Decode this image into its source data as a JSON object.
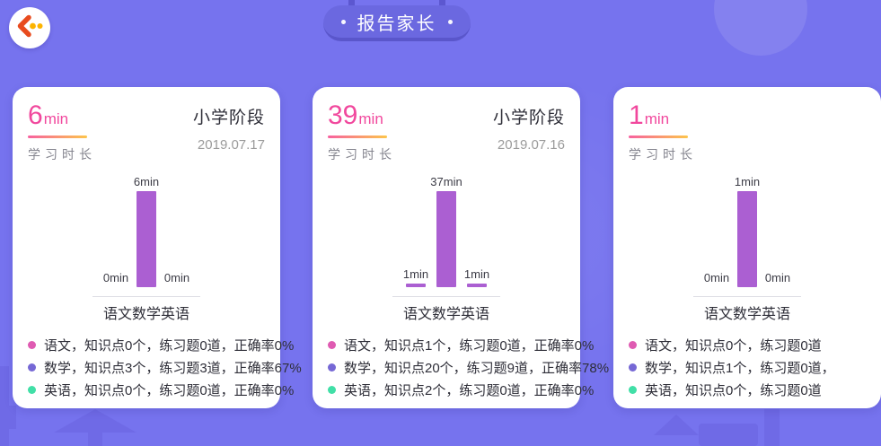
{
  "theme": {
    "background": "#7673ee",
    "card_background": "#ffffff",
    "accent_pink": "#f1489d",
    "underline_gradient": [
      "#f7619f",
      "#fcc54b"
    ],
    "bar_color": "#ab5fd2",
    "pill_color": "#6b68e0",
    "pill_shadow_color": "#5a56cb"
  },
  "header": {
    "title": "报告家长",
    "back_icon": "chevron-left-with-dots",
    "back_chevron_color": "#e84b1e",
    "back_dots_color": "#fcb400"
  },
  "cards": [
    {
      "duration_value": "6",
      "duration_unit": "min",
      "duration_label": "学习时长",
      "stage": "小学阶段",
      "date": "2019.07.17",
      "chart_data": {
        "type": "bar",
        "categories": [
          "语文",
          "数学",
          "英语"
        ],
        "values": [
          0,
          6,
          0
        ],
        "unit": "min",
        "value_labels": [
          "0min",
          "6min",
          "0min"
        ],
        "ylim": [
          0,
          6
        ],
        "bar_color": "#ab5fd2"
      },
      "legend": [
        {
          "color": "#df5bb2",
          "text": "语文，知识点0个，练习题0道，正确率0%"
        },
        {
          "color": "#7668d5",
          "text": "数学，知识点3个，练习题3道，正确率67%"
        },
        {
          "color": "#41dfa7",
          "text": "英语，知识点0个，练习题0道，正确率0%"
        }
      ]
    },
    {
      "duration_value": "39",
      "duration_unit": "min",
      "duration_label": "学习时长",
      "stage": "小学阶段",
      "date": "2019.07.16",
      "chart_data": {
        "type": "bar",
        "categories": [
          "语文",
          "数学",
          "英语"
        ],
        "values": [
          1,
          37,
          1
        ],
        "unit": "min",
        "value_labels": [
          "1min",
          "37min",
          "1min"
        ],
        "ylim": [
          0,
          37
        ],
        "bar_color": "#ab5fd2"
      },
      "legend": [
        {
          "color": "#df5bb2",
          "text": "语文，知识点1个，练习题0道，正确率0%"
        },
        {
          "color": "#7668d5",
          "text": "数学，知识点20个，练习题9道，正确率78%"
        },
        {
          "color": "#41dfa7",
          "text": "英语，知识点2个，练习题0道，正确率0%"
        }
      ]
    },
    {
      "duration_value": "1",
      "duration_unit": "min",
      "duration_label": "学习时长",
      "chart_data": {
        "type": "bar",
        "categories": [
          "语文",
          "数学",
          "英语"
        ],
        "values": [
          0,
          1,
          0
        ],
        "unit": "min",
        "value_labels": [
          "0min",
          "1min",
          "0min"
        ],
        "ylim": [
          0,
          1
        ],
        "bar_color": "#ab5fd2"
      },
      "legend": [
        {
          "color": "#df5bb2",
          "text": "语文，知识点0个，练习题0道"
        },
        {
          "color": "#7668d5",
          "text": "数学，知识点1个，练习题0道，"
        },
        {
          "color": "#41dfa7",
          "text": "英语，知识点0个，练习题0道"
        }
      ]
    }
  ]
}
